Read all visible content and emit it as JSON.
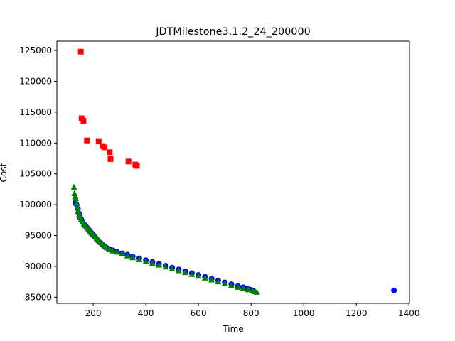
{
  "chart_data": {
    "type": "scatter",
    "title": "JDTMilestone3.1.2_24_200000",
    "xlabel": "Time",
    "ylabel": "Cost",
    "xlim": [
      62,
      1402
    ],
    "ylim": [
      84000,
      126500
    ],
    "xticks": [
      200,
      400,
      600,
      800,
      1000,
      1200,
      1400
    ],
    "xtick_labels": [
      "200",
      "400",
      "600",
      "800",
      "1000",
      "1200",
      "1400"
    ],
    "yticks": [
      85000,
      90000,
      95000,
      100000,
      105000,
      110000,
      115000,
      120000,
      125000
    ],
    "ytick_labels": [
      "85000",
      "90000",
      "95000",
      "100000",
      "105000",
      "110000",
      "115000",
      "120000",
      "125000"
    ],
    "grid": false,
    "legend": "none",
    "series": [
      {
        "marker": "circle",
        "color": "#0000ff",
        "x": [
          132,
          137,
          142,
          146,
          150,
          155,
          160,
          166,
          172,
          178,
          184,
          190,
          196,
          202,
          208,
          214,
          220,
          228,
          236,
          244,
          252,
          262,
          275,
          290,
          310,
          330,
          350,
          375,
          400,
          425,
          450,
          475,
          500,
          525,
          550,
          575,
          600,
          625,
          650,
          675,
          700,
          725,
          750,
          770,
          785,
          798,
          808,
          1343
        ],
        "y": [
          100300,
          100000,
          99300,
          98600,
          98000,
          97600,
          97200,
          96800,
          96500,
          96200,
          95900,
          95600,
          95300,
          95000,
          94700,
          94400,
          94100,
          93800,
          93500,
          93200,
          93000,
          92800,
          92600,
          92400,
          92100,
          91900,
          91600,
          91300,
          91000,
          90700,
          90400,
          90100,
          89800,
          89500,
          89200,
          88900,
          88600,
          88300,
          88000,
          87700,
          87400,
          87100,
          86800,
          86600,
          86400,
          86200,
          86000,
          86100
        ]
      },
      {
        "marker": "square",
        "color": "#ff0000",
        "x": [
          153,
          156,
          163,
          176,
          221,
          235,
          243,
          263,
          266,
          334,
          360,
          366
        ],
        "y": [
          124800,
          114000,
          113600,
          110400,
          110300,
          109500,
          109300,
          108500,
          107400,
          107000,
          106500,
          106300
        ]
      },
      {
        "marker": "triangle",
        "color": "#008000",
        "x": [
          127,
          129,
          132,
          134,
          137,
          140,
          143,
          147,
          151,
          155,
          160,
          165,
          170,
          176,
          182,
          188,
          194,
          200,
          207,
          214,
          221,
          228,
          236,
          244,
          252,
          262,
          275,
          290,
          310,
          330,
          350,
          375,
          400,
          425,
          450,
          475,
          500,
          525,
          550,
          575,
          600,
          625,
          650,
          675,
          700,
          725,
          750,
          770,
          790,
          805,
          815,
          822
        ],
        "y": [
          102800,
          101800,
          101300,
          101000,
          100200,
          99500,
          98900,
          98400,
          98000,
          97600,
          97200,
          96900,
          96600,
          96300,
          96000,
          95700,
          95400,
          95100,
          94800,
          94500,
          94200,
          93900,
          93600,
          93300,
          93000,
          92700,
          92500,
          92300,
          92000,
          91700,
          91400,
          91100,
          90800,
          90500,
          90200,
          89900,
          89600,
          89300,
          89000,
          88700,
          88400,
          88100,
          87800,
          87500,
          87200,
          86900,
          86600,
          86400,
          86200,
          86000,
          85900,
          85800
        ]
      }
    ]
  }
}
